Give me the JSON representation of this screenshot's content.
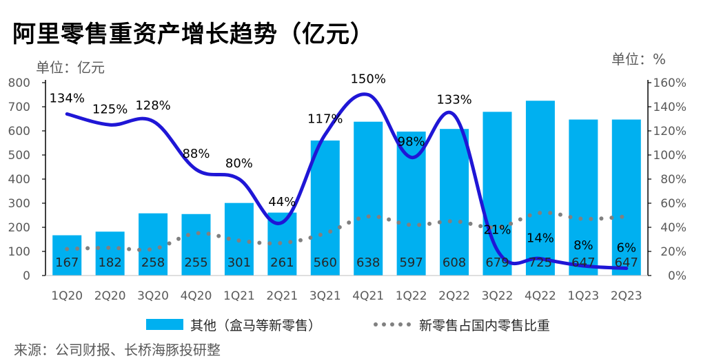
{
  "title": "阿里零售重资产增长趋势（亿元）",
  "unit_left": "单位：亿元",
  "unit_right": "单位：%",
  "source": "来源：公司财报、长桥海豚投研整",
  "legend": {
    "bar": "其他（盒马等新零售）",
    "dots": "新零售占国内零售比重"
  },
  "colors": {
    "bar": "#00b0f0",
    "line": "#1f16d6",
    "dots": "#808080",
    "axis": "#000000"
  },
  "chart_data": {
    "type": "bar",
    "categories": [
      "1Q20",
      "2Q20",
      "3Q20",
      "4Q20",
      "1Q21",
      "2Q21",
      "3Q21",
      "4Q21",
      "1Q22",
      "2Q22",
      "3Q22",
      "4Q22",
      "1Q23",
      "2Q23"
    ],
    "series": [
      {
        "name": "其他（盒马等新零售）",
        "type": "bar",
        "axis": "left",
        "values": [
          167,
          182,
          258,
          255,
          301,
          261,
          560,
          638,
          597,
          608,
          679,
          725,
          647,
          647
        ],
        "labels": [
          "167",
          "182",
          "258",
          "255",
          "301",
          "261",
          "560",
          "638",
          "597",
          "608",
          "679",
          "725",
          "647",
          "647"
        ]
      },
      {
        "name": "",
        "type": "line",
        "axis": "right",
        "values": [
          134,
          125,
          128,
          88,
          80,
          44,
          117,
          150,
          98,
          133,
          21,
          14,
          8,
          6
        ],
        "labels": [
          "134%",
          "125%",
          "128%",
          "88%",
          "80%",
          "44%",
          "117%",
          "150%",
          "98%",
          "133%",
          "21%",
          "14%",
          "8%",
          "6%"
        ]
      },
      {
        "name": "新零售占国内零售比重",
        "type": "dotted-line",
        "axis": "right",
        "values": [
          22,
          23,
          22,
          35,
          29,
          27,
          35,
          49,
          42,
          45,
          40,
          52,
          47,
          49
        ]
      }
    ],
    "y_left": {
      "ticks": [
        "0",
        "100",
        "200",
        "300",
        "400",
        "500",
        "600",
        "700",
        "800"
      ],
      "range": [
        0,
        800
      ]
    },
    "y_right": {
      "ticks": [
        "0%",
        "20%",
        "40%",
        "60%",
        "80%",
        "100%",
        "120%",
        "140%",
        "160%"
      ],
      "range": [
        0,
        160
      ]
    },
    "legend_position": "bottom",
    "grid": false
  }
}
